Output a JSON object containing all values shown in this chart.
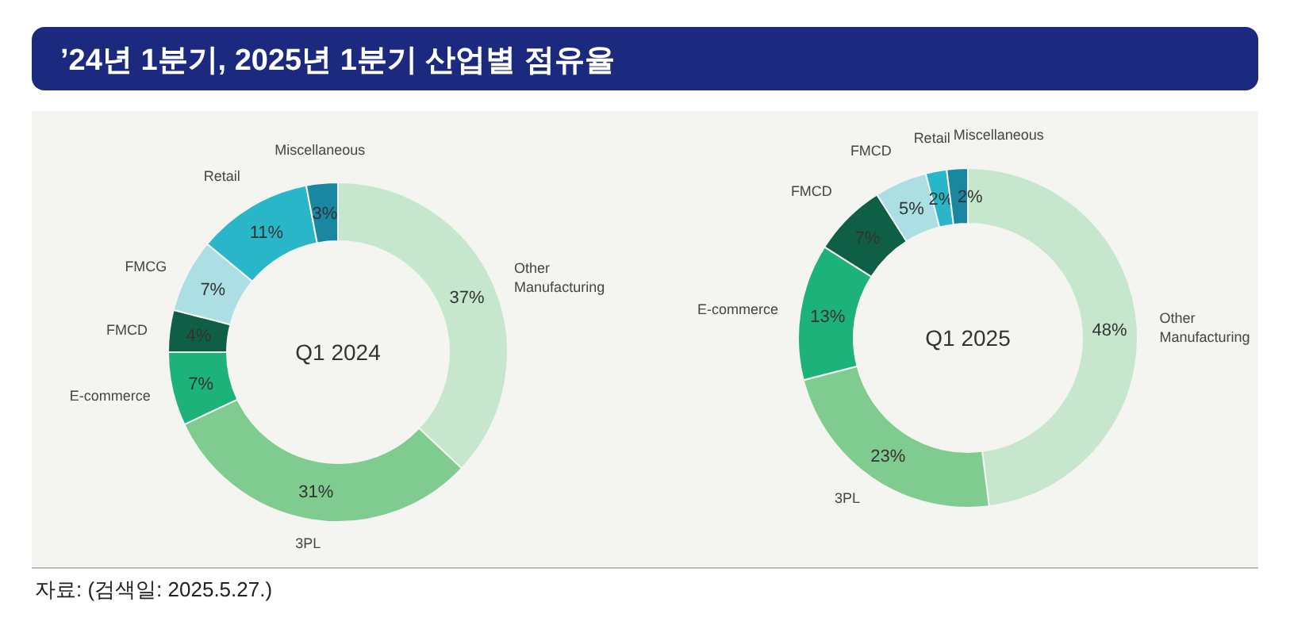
{
  "chart_data": [
    {
      "type": "donut",
      "title": "’24년 1분기, 2025년 1분기 산업별 점유율",
      "subtitle": "Q1 2024",
      "categories": [
        "Other Manufacturing",
        "3PL",
        "E-commerce",
        "FMCD",
        "FMCG",
        "Retail",
        "Miscellaneous"
      ],
      "values": [
        37,
        31,
        7,
        4,
        7,
        11,
        3
      ],
      "value_labels": [
        "37%",
        "31%",
        "7%",
        "4%",
        "7%",
        "11%",
        "3%"
      ],
      "colors": [
        "#c6e7cd",
        "#80cb90",
        "#1cb27a",
        "#0f5f46",
        "#abdfe3",
        "#29b6c8",
        "#1987a0"
      ]
    },
    {
      "type": "donut",
      "subtitle": "Q1 2025",
      "categories": [
        "Other Manufacturing",
        "3PL",
        "E-commerce",
        "FMCD",
        "FMCD",
        "Retail",
        "Miscellaneous"
      ],
      "values": [
        48,
        23,
        13,
        7,
        5,
        2,
        2
      ],
      "value_labels": [
        "48%",
        "23%",
        "13%",
        "7%",
        "5%",
        "2%",
        "2%"
      ],
      "colors": [
        "#c6e7cd",
        "#80cb90",
        "#1cb27a",
        "#0f5f46",
        "#abdfe3",
        "#29b6c8",
        "#1987a0"
      ],
      "annotations": [
        "자료: (검색일: 2025.5.27.)"
      ]
    }
  ]
}
